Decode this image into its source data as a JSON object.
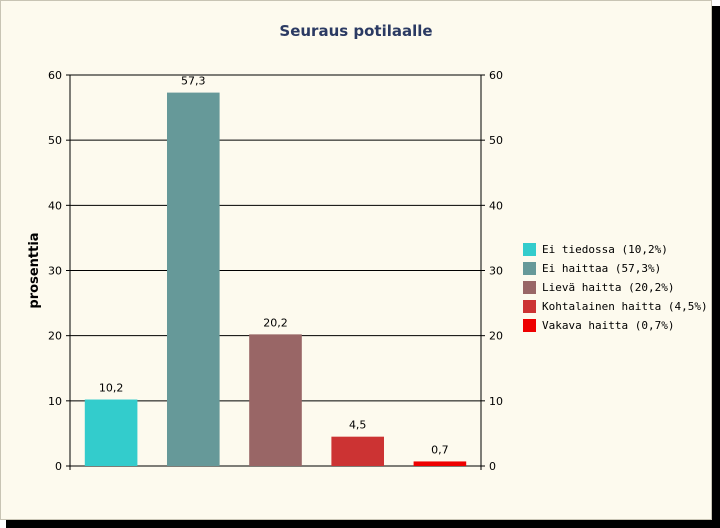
{
  "chart_data": {
    "type": "bar",
    "title": "Seuraus potilaalle",
    "ylabel": "prosenttia",
    "xlabel": "",
    "ylim": [
      0,
      60
    ],
    "yticks": [
      0,
      10,
      20,
      30,
      40,
      50,
      60
    ],
    "grid": true,
    "legend_position": "right",
    "categories": [
      "Ei tiedossa",
      "Ei haittaa",
      "Lievä haitta",
      "Kohtalainen haitta",
      "Vakava haitta"
    ],
    "values": [
      10.2,
      57.3,
      20.2,
      4.5,
      0.7
    ],
    "data_labels": [
      "10,2",
      "57,3",
      "20,2",
      "4,5",
      "0,7"
    ],
    "colors": [
      "#33cccc",
      "#669999",
      "#996666",
      "#cc3333",
      "#ee0000"
    ],
    "legend": [
      "Ei tiedossa (10,2%)",
      "Ei haittaa (57,3%)",
      "Lievä haitta (20,2%)",
      "Kohtalainen haitta (4,5%)",
      "Vakava haitta (0,7%)"
    ]
  }
}
